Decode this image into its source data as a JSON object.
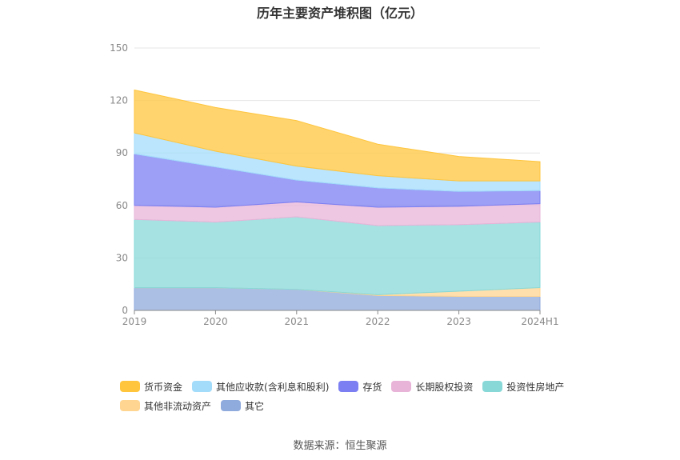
{
  "chart_data": {
    "type": "area",
    "stacked": true,
    "title": "历年主要资产堆积图（亿元）",
    "categories": [
      "2019",
      "2020",
      "2021",
      "2022",
      "2023",
      "2024H1"
    ],
    "ylim": [
      0,
      150
    ],
    "yticks": [
      0,
      30,
      60,
      90,
      120,
      150
    ],
    "grid": true,
    "legend_position": "bottom",
    "series": [
      {
        "name": "其它",
        "color": "#8faadc",
        "values": [
          13,
          13,
          12,
          8.5,
          8,
          8
        ]
      },
      {
        "name": "其他非流动资产",
        "color": "#ffd591",
        "values": [
          0,
          0,
          0,
          0.5,
          3,
          5
        ]
      },
      {
        "name": "投资性房地产",
        "color": "#88d8d8",
        "values": [
          39,
          37.5,
          41.5,
          39.5,
          38,
          37.5
        ]
      },
      {
        "name": "长期股权投资",
        "color": "#e8b4d8",
        "values": [
          8,
          8.5,
          8.5,
          10.5,
          10.5,
          10.5
        ]
      },
      {
        "name": "存货",
        "color": "#7b7ff2",
        "values": [
          29.5,
          23,
          12.5,
          11,
          8.5,
          7.5
        ]
      },
      {
        "name": "其他应收款(含利息和股利)",
        "color": "#a3dcfb",
        "values": [
          12,
          9,
          8,
          7,
          6,
          5.5
        ]
      },
      {
        "name": "货币资金",
        "color": "#ffc53d",
        "values": [
          24.5,
          25,
          26,
          18,
          14,
          11
        ]
      }
    ],
    "legend_order": [
      "货币资金",
      "其他应收款(含利息和股利)",
      "存货",
      "长期股权投资",
      "投资性房地产",
      "其他非流动资产",
      "其它"
    ],
    "source": "数据来源：恒生聚源"
  }
}
